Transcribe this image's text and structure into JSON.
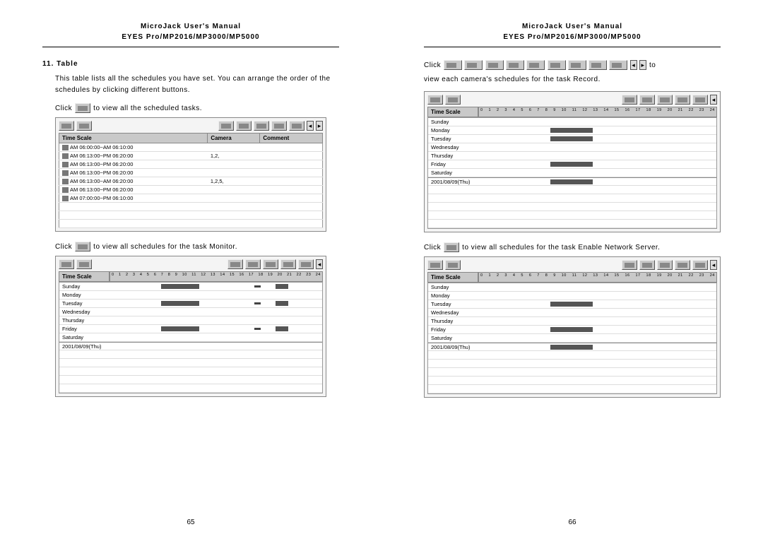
{
  "header": {
    "title": "MicroJack User's Manual",
    "subtitle": "EYES Pro/MP2016/MP3000/MP5000"
  },
  "left": {
    "section_num": "11. Table",
    "intro": "This table lists all the schedules you have set. You can arrange the order of the schedules by clicking different buttons.",
    "click1_pre": "Click",
    "click1_post": "to view all the scheduled tasks.",
    "click2_pre": "Click",
    "click2_post": "to view all schedules for the task Monitor.",
    "table1": {
      "cols": [
        "Time Scale",
        "Camera",
        "Comment"
      ],
      "rows": [
        [
          "AM 06:00:00~AM 06:10:00",
          "",
          ""
        ],
        [
          "AM 06:13:00~PM 06:20:00",
          "1,2,",
          ""
        ],
        [
          "AM 06:13:00~PM 06:20:00",
          "",
          ""
        ],
        [
          "AM 06:13:00~PM 06:20:00",
          "",
          ""
        ],
        [
          "AM 06:13:00~AM 06:20:00",
          "1,2,5,",
          ""
        ],
        [
          "AM 06:13:00~PM 06:20:00",
          "",
          ""
        ],
        [
          "AM 07:00:00~PM 06:10:00",
          "",
          ""
        ]
      ]
    },
    "timeline1": {
      "label": "Time Scale",
      "hours": [
        "0",
        "1",
        "2",
        "3",
        "4",
        "5",
        "6",
        "7",
        "8",
        "9",
        "10",
        "11",
        "12",
        "13",
        "14",
        "15",
        "16",
        "17",
        "18",
        "19",
        "20",
        "21",
        "22",
        "23",
        "24"
      ],
      "rows": [
        {
          "day": "Sunday",
          "bars": [
            {
              "l": 24,
              "w": 18
            },
            {
              "l": 68,
              "w": 3
            },
            {
              "l": 78,
              "w": 6
            }
          ]
        },
        {
          "day": "Monday",
          "bars": []
        },
        {
          "day": "Tuesday",
          "bars": [
            {
              "l": 24,
              "w": 18
            },
            {
              "l": 68,
              "w": 3
            },
            {
              "l": 78,
              "w": 6
            }
          ]
        },
        {
          "day": "Wednesday",
          "bars": []
        },
        {
          "day": "Thursday",
          "bars": []
        },
        {
          "day": "Friday",
          "bars": [
            {
              "l": 24,
              "w": 18
            },
            {
              "l": 68,
              "w": 3
            },
            {
              "l": 78,
              "w": 6
            }
          ]
        },
        {
          "day": "Saturday",
          "bars": []
        }
      ],
      "extra": {
        "day": "2001/08/09(Thu)",
        "bars": []
      }
    },
    "page_num": "65"
  },
  "right": {
    "click1_pre": "Click",
    "click1_post": "to",
    "click1_line2": "view each camera's schedules for the task Record.",
    "click2_pre": "Click",
    "click2_post": "to view all schedules for the task Enable Network Server.",
    "timeline1": {
      "label": "Time Scale",
      "rows": [
        {
          "day": "Sunday",
          "bars": []
        },
        {
          "day": "Monday",
          "bars": [
            {
              "l": 30,
              "w": 18
            }
          ]
        },
        {
          "day": "Tuesday",
          "bars": [
            {
              "l": 30,
              "w": 18
            }
          ]
        },
        {
          "day": "Wednesday",
          "bars": []
        },
        {
          "day": "Thursday",
          "bars": []
        },
        {
          "day": "Friday",
          "bars": [
            {
              "l": 30,
              "w": 18
            }
          ]
        },
        {
          "day": "Saturday",
          "bars": []
        }
      ],
      "extra": {
        "day": "2001/08/09(Thu)",
        "bars": [
          {
            "l": 30,
            "w": 18
          }
        ]
      }
    },
    "timeline2": {
      "label": "Time Scale",
      "rows": [
        {
          "day": "Sunday",
          "bars": []
        },
        {
          "day": "Monday",
          "bars": []
        },
        {
          "day": "Tuesday",
          "bars": [
            {
              "l": 30,
              "w": 18
            }
          ]
        },
        {
          "day": "Wednesday",
          "bars": []
        },
        {
          "day": "Thursday",
          "bars": []
        },
        {
          "day": "Friday",
          "bars": [
            {
              "l": 30,
              "w": 18
            }
          ]
        },
        {
          "day": "Saturday",
          "bars": []
        }
      ],
      "extra": {
        "day": "2001/08/09(Thu)",
        "bars": [
          {
            "l": 30,
            "w": 18
          }
        ]
      }
    },
    "page_num": "66"
  },
  "colors": {
    "bg": "#ffffff",
    "button_bg": "#c8c8c8",
    "table_header_bg": "#c9c9c9",
    "bar_color": "#555555"
  }
}
